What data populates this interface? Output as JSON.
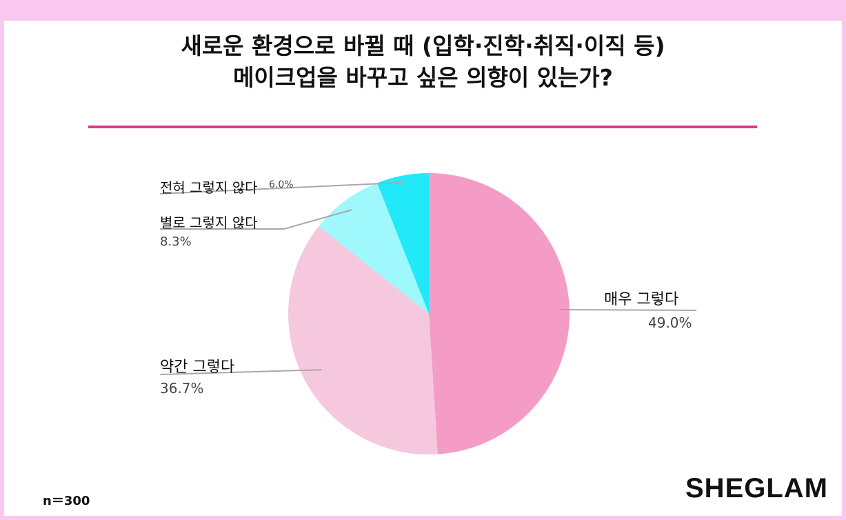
{
  "title_lines": [
    "새로운 환경으로 바뀔 때 (입학·진학·취직·이직 등)",
    "메이크업을 바꾸고 싶은 의향이 있는가?"
  ],
  "sample_note": "n＝300",
  "brand": "SHEGLAM",
  "colors": {
    "rule": "#e1378f",
    "background": "#f9c8ee"
  },
  "chart_data": {
    "type": "pie",
    "title": "새로운 환경으로 바뀔 때 (입학·진학·취직·이직 등) 메이크업을 바꾸고 싶은 의향이 있는가?",
    "slices": [
      {
        "label": "매우 그렇다",
        "value": 49.0,
        "value_label": "49.0%",
        "color": "#f49bc6"
      },
      {
        "label": "약간 그렇다",
        "value": 36.7,
        "value_label": "36.7%",
        "color": "#f5c8de"
      },
      {
        "label": "별로 그렇지 않다",
        "value": 8.3,
        "value_label": "8.3%",
        "color": "#9ff8fc"
      },
      {
        "label": "전혀 그렇지 않다",
        "value": 6.0,
        "value_label": "6.0%",
        "color": "#21e9f9"
      }
    ],
    "start_angle": "12 o'clock",
    "direction": "clockwise"
  }
}
